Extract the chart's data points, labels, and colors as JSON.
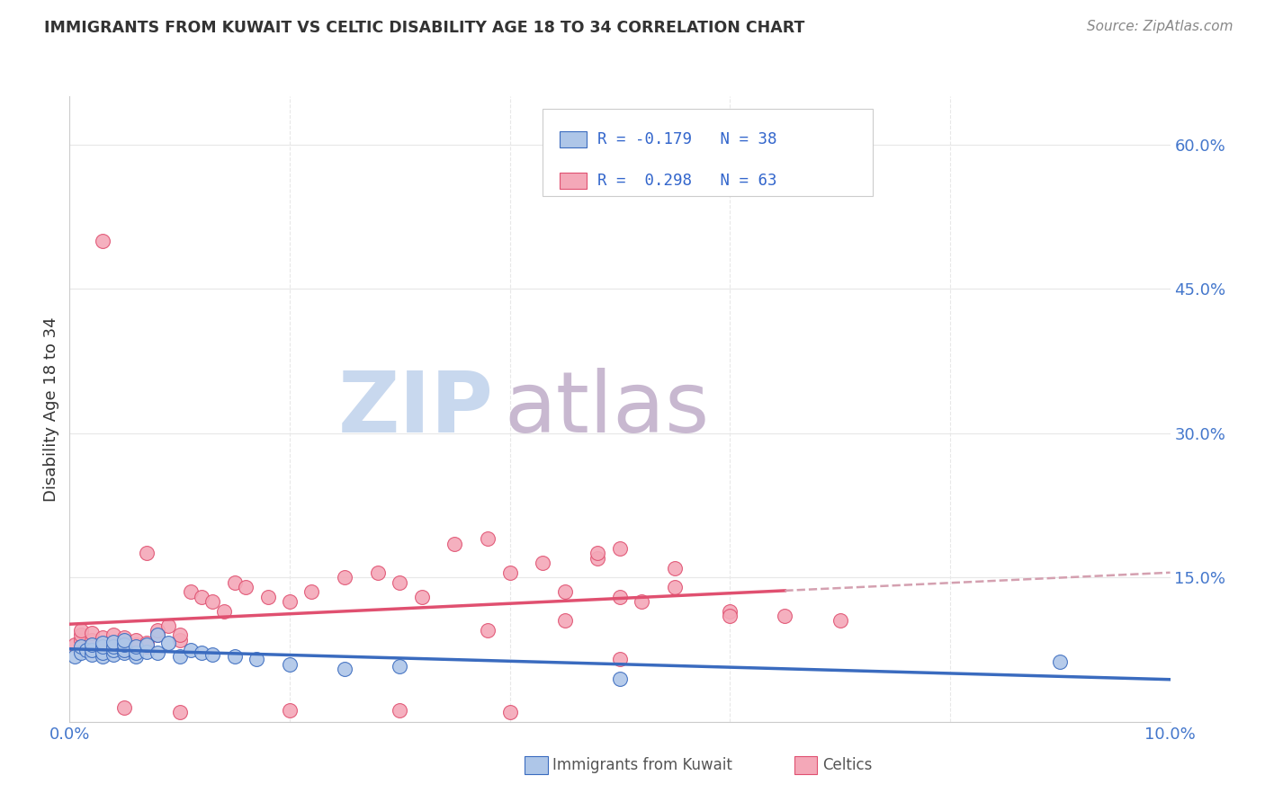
{
  "title": "IMMIGRANTS FROM KUWAIT VS CELTIC DISABILITY AGE 18 TO 34 CORRELATION CHART",
  "source": "Source: ZipAtlas.com",
  "ylabel": "Disability Age 18 to 34",
  "xlim": [
    0.0,
    0.1
  ],
  "ylim": [
    0.0,
    0.65
  ],
  "xticks": [
    0.0,
    0.02,
    0.04,
    0.06,
    0.08,
    0.1
  ],
  "xtick_labels": [
    "0.0%",
    "",
    "",
    "",
    "",
    "10.0%"
  ],
  "yticks_right": [
    0.0,
    0.15,
    0.3,
    0.45,
    0.6
  ],
  "ytick_labels_right": [
    "",
    "15.0%",
    "30.0%",
    "45.0%",
    "60.0%"
  ],
  "color_kuwait": "#aec6e8",
  "color_celtics": "#f4a8b8",
  "color_kuwait_line": "#3a6bbf",
  "color_celtics_line": "#e05070",
  "color_celtics_dashed": "#d4a0b0",
  "kuwait_x": [
    0.0005,
    0.001,
    0.001,
    0.0015,
    0.002,
    0.002,
    0.002,
    0.003,
    0.003,
    0.003,
    0.003,
    0.004,
    0.004,
    0.004,
    0.004,
    0.005,
    0.005,
    0.005,
    0.005,
    0.006,
    0.006,
    0.006,
    0.007,
    0.007,
    0.008,
    0.008,
    0.009,
    0.01,
    0.011,
    0.012,
    0.013,
    0.015,
    0.017,
    0.02,
    0.025,
    0.03,
    0.05,
    0.09
  ],
  "kuwait_y": [
    0.068,
    0.072,
    0.078,
    0.075,
    0.07,
    0.075,
    0.08,
    0.068,
    0.072,
    0.078,
    0.082,
    0.07,
    0.075,
    0.078,
    0.083,
    0.072,
    0.075,
    0.08,
    0.085,
    0.068,
    0.072,
    0.078,
    0.073,
    0.08,
    0.072,
    0.09,
    0.082,
    0.068,
    0.075,
    0.072,
    0.07,
    0.068,
    0.065,
    0.06,
    0.055,
    0.058,
    0.045,
    0.062
  ],
  "celtics_x": [
    0.0005,
    0.001,
    0.001,
    0.001,
    0.002,
    0.002,
    0.002,
    0.003,
    0.003,
    0.004,
    0.004,
    0.004,
    0.005,
    0.005,
    0.005,
    0.006,
    0.006,
    0.007,
    0.007,
    0.007,
    0.008,
    0.008,
    0.009,
    0.01,
    0.01,
    0.011,
    0.012,
    0.013,
    0.014,
    0.015,
    0.016,
    0.018,
    0.02,
    0.022,
    0.025,
    0.028,
    0.03,
    0.032,
    0.035,
    0.038,
    0.04,
    0.043,
    0.045,
    0.048,
    0.05,
    0.052,
    0.055,
    0.06,
    0.065,
    0.003,
    0.04,
    0.05,
    0.045,
    0.06,
    0.005,
    0.03,
    0.02,
    0.01,
    0.07,
    0.048,
    0.05,
    0.055,
    0.038
  ],
  "celtics_y": [
    0.08,
    0.085,
    0.09,
    0.095,
    0.078,
    0.085,
    0.092,
    0.08,
    0.088,
    0.078,
    0.082,
    0.09,
    0.075,
    0.08,
    0.088,
    0.08,
    0.085,
    0.078,
    0.082,
    0.175,
    0.09,
    0.095,
    0.1,
    0.085,
    0.09,
    0.135,
    0.13,
    0.125,
    0.115,
    0.145,
    0.14,
    0.13,
    0.125,
    0.135,
    0.15,
    0.155,
    0.145,
    0.13,
    0.185,
    0.19,
    0.155,
    0.165,
    0.135,
    0.17,
    0.13,
    0.125,
    0.14,
    0.115,
    0.11,
    0.5,
    0.01,
    0.065,
    0.105,
    0.11,
    0.015,
    0.012,
    0.012,
    0.01,
    0.105,
    0.175,
    0.18,
    0.16,
    0.095
  ],
  "watermark_zip": "ZIP",
  "watermark_atlas": "atlas",
  "watermark_color_zip": "#c8d8ee",
  "watermark_color_atlas": "#c8b8d0",
  "background_color": "#ffffff",
  "grid_color": "#e8e8e8"
}
